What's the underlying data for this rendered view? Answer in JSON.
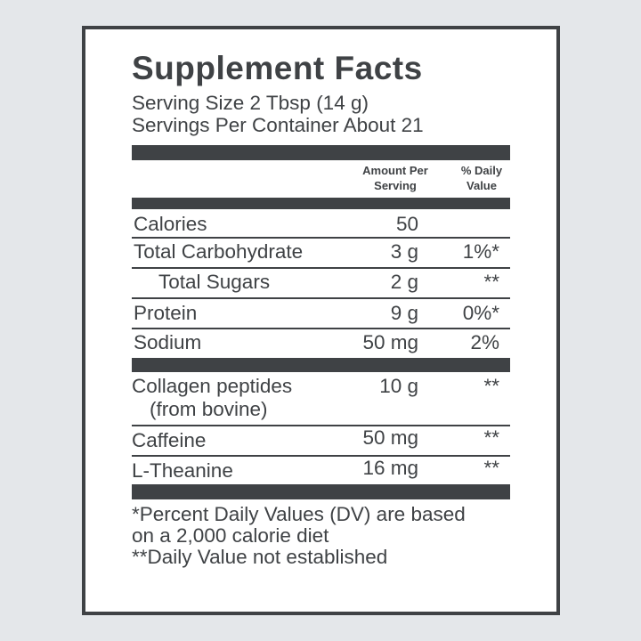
{
  "title": "Supplement Facts",
  "serving_size": "Serving Size 2 Tbsp (14 g)",
  "servings_per_container": "Servings Per Container About 21",
  "header": {
    "amount_line1": "Amount Per",
    "amount_line2": "Serving",
    "dv_line1": "% Daily",
    "dv_line2": "Value"
  },
  "rows": [
    {
      "name": "Calories",
      "amount": "50",
      "dv": ""
    },
    {
      "name": "Total Carbohydrate",
      "amount": "3 g",
      "dv": "1%*"
    },
    {
      "name": "Total Sugars",
      "amount": "2 g",
      "dv": "**"
    },
    {
      "name": "Protein",
      "amount": "9 g",
      "dv": "0%*"
    },
    {
      "name": "Sodium",
      "amount": "50 mg",
      "dv": "2%"
    }
  ],
  "other": [
    {
      "name": "Collagen peptides",
      "sub": "(from bovine)",
      "amount": "10 g",
      "dv": "**"
    },
    {
      "name": "Caffeine",
      "amount": "50 mg",
      "dv": "**"
    },
    {
      "name": "L-Theanine",
      "amount": "16 mg",
      "dv": "**"
    }
  ],
  "footnotes": {
    "line1": "*Percent Daily Values (DV) are based",
    "line2": "on a 2,000 calorie diet",
    "line3": "**Daily Value not established"
  },
  "colors": {
    "ink": "#3f4245",
    "background": "#e4e7ea",
    "panel": "#ffffff"
  }
}
